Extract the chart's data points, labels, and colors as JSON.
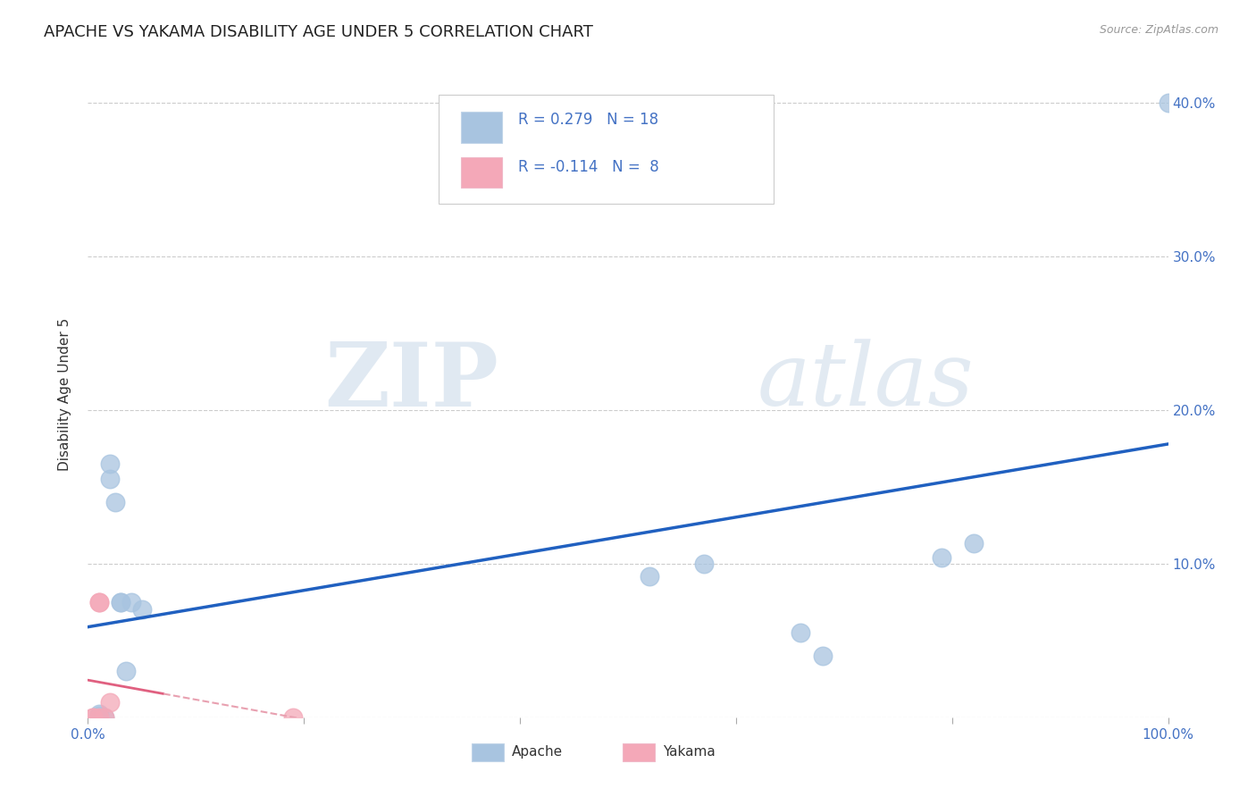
{
  "title": "APACHE VS YAKAMA DISABILITY AGE UNDER 5 CORRELATION CHART",
  "source": "Source: ZipAtlas.com",
  "ylabel": "Disability Age Under 5",
  "xlim": [
    0.0,
    1.0
  ],
  "ylim": [
    0.0,
    0.42
  ],
  "xticks": [
    0.0,
    0.2,
    0.4,
    0.6,
    0.8,
    1.0
  ],
  "xticklabels": [
    "0.0%",
    "",
    "",
    "",
    "",
    "100.0%"
  ],
  "yticks": [
    0.0,
    0.1,
    0.2,
    0.3,
    0.4
  ],
  "yticklabels": [
    "",
    "10.0%",
    "20.0%",
    "30.0%",
    "40.0%"
  ],
  "apache_R": 0.279,
  "apache_N": 18,
  "yakama_R": -0.114,
  "yakama_N": 8,
  "apache_color": "#a8c4e0",
  "yakama_color": "#f4a8b8",
  "apache_line_color": "#2060c0",
  "yakama_line_color": "#e06080",
  "yakama_line_dashed_color": "#e8a0b0",
  "apache_x": [
    0.01,
    0.01,
    0.015,
    0.02,
    0.02,
    0.025,
    0.03,
    0.03,
    0.035,
    0.04,
    0.05,
    0.52,
    0.57,
    0.66,
    0.68,
    0.79,
    0.82,
    1.0
  ],
  "apache_y": [
    0.001,
    0.002,
    0.0,
    0.155,
    0.165,
    0.14,
    0.075,
    0.075,
    0.03,
    0.075,
    0.07,
    0.092,
    0.1,
    0.055,
    0.04,
    0.104,
    0.113,
    0.4
  ],
  "yakama_x": [
    0.005,
    0.005,
    0.01,
    0.01,
    0.01,
    0.015,
    0.02,
    0.19
  ],
  "yakama_y": [
    0.0,
    0.0,
    0.075,
    0.075,
    0.0,
    0.0,
    0.01,
    0.0
  ],
  "watermark_zip": "ZIP",
  "watermark_atlas": "atlas",
  "background_color": "#ffffff",
  "grid_color": "#cccccc",
  "title_fontsize": 13,
  "tick_color": "#4472c4",
  "legend_R_color": "#000000"
}
